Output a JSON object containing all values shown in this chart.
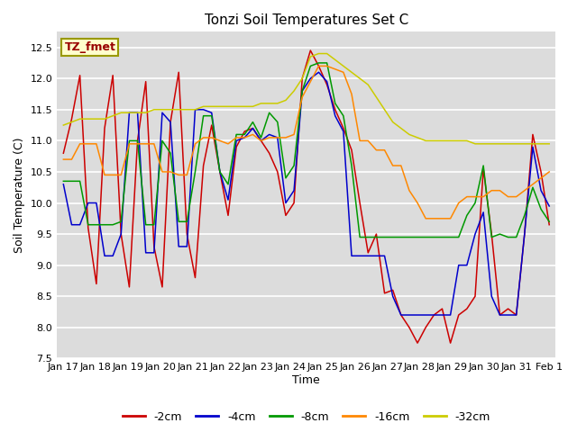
{
  "title": "Tonzi Soil Temperatures Set C",
  "xlabel": "Time",
  "ylabel": "Soil Temperature (C)",
  "ylim": [
    7.5,
    12.75
  ],
  "plot_bg_color": "#dcdcdc",
  "legend_label": "TZ_fmet",
  "series_labels": [
    "-2cm",
    "-4cm",
    "-8cm",
    "-16cm",
    "-32cm"
  ],
  "series_colors": [
    "#cc0000",
    "#0000cc",
    "#009900",
    "#ff8800",
    "#cccc00"
  ],
  "x_tick_labels": [
    "Jan 17",
    "Jan 18",
    "Jan 19",
    "Jan 20",
    "Jan 21",
    "Jan 22",
    "Jan 23",
    "Jan 24",
    "Jan 25",
    "Jan 26",
    "Jan 27",
    "Jan 28",
    "Jan 29",
    "Jan 30",
    "Jan 31",
    "Feb 1"
  ],
  "data_2cm": [
    10.8,
    11.35,
    12.05,
    9.6,
    8.7,
    11.2,
    12.05,
    9.5,
    8.65,
    11.0,
    11.95,
    9.3,
    8.65,
    11.3,
    12.1,
    9.5,
    8.8,
    10.6,
    11.25,
    10.5,
    9.8,
    10.9,
    11.15,
    11.2,
    11.0,
    10.8,
    10.5,
    9.8,
    10.0,
    12.0,
    12.45,
    12.2,
    11.9,
    11.5,
    11.2,
    10.85,
    10.0,
    9.2,
    9.5,
    8.55,
    8.6,
    8.2,
    8.0,
    7.75,
    8.0,
    8.2,
    8.3,
    7.75,
    8.2,
    8.3,
    8.5,
    10.55,
    9.5,
    8.2,
    8.3,
    8.2,
    9.5,
    11.1,
    10.5,
    9.65
  ],
  "data_4cm": [
    10.3,
    9.65,
    9.65,
    10.0,
    10.0,
    9.15,
    9.15,
    9.5,
    11.45,
    11.45,
    9.2,
    9.2,
    11.45,
    11.3,
    9.3,
    9.3,
    11.5,
    11.5,
    11.45,
    10.5,
    10.05,
    11.0,
    11.05,
    11.2,
    11.0,
    11.1,
    11.05,
    10.0,
    10.2,
    11.8,
    12.0,
    12.1,
    11.95,
    11.4,
    11.15,
    9.15,
    9.15,
    9.15,
    9.15,
    9.15,
    8.5,
    8.2,
    8.2,
    8.2,
    8.2,
    8.2,
    8.2,
    8.2,
    9.0,
    9.0,
    9.5,
    9.85,
    8.5,
    8.2,
    8.2,
    8.2,
    9.5,
    10.9,
    10.2,
    9.95
  ],
  "data_8cm": [
    10.35,
    10.35,
    10.35,
    9.65,
    9.65,
    9.65,
    9.65,
    9.7,
    11.0,
    11.0,
    9.65,
    9.65,
    11.0,
    10.8,
    9.7,
    9.7,
    10.5,
    11.4,
    11.4,
    10.5,
    10.3,
    11.1,
    11.1,
    11.3,
    11.05,
    11.45,
    11.3,
    10.4,
    10.6,
    11.8,
    12.2,
    12.25,
    12.25,
    11.6,
    11.4,
    10.6,
    9.45,
    9.45,
    9.45,
    9.45,
    9.45,
    9.45,
    9.45,
    9.45,
    9.45,
    9.45,
    9.45,
    9.45,
    9.45,
    9.8,
    10.0,
    10.6,
    9.45,
    9.5,
    9.45,
    9.45,
    9.8,
    10.25,
    9.9,
    9.7
  ],
  "data_16cm": [
    10.7,
    10.7,
    10.95,
    10.95,
    10.95,
    10.45,
    10.45,
    10.45,
    10.95,
    10.95,
    10.95,
    10.95,
    10.5,
    10.5,
    10.45,
    10.45,
    10.95,
    11.05,
    11.05,
    11.0,
    10.95,
    11.05,
    11.05,
    11.1,
    11.0,
    11.05,
    11.05,
    11.05,
    11.1,
    11.7,
    11.95,
    12.2,
    12.2,
    12.15,
    12.1,
    11.75,
    11.0,
    11.0,
    10.85,
    10.85,
    10.6,
    10.6,
    10.2,
    10.0,
    9.75,
    9.75,
    9.75,
    9.75,
    10.0,
    10.1,
    10.1,
    10.1,
    10.2,
    10.2,
    10.1,
    10.1,
    10.2,
    10.3,
    10.4,
    10.5
  ],
  "data_32cm": [
    11.25,
    11.3,
    11.35,
    11.35,
    11.35,
    11.35,
    11.4,
    11.45,
    11.45,
    11.45,
    11.45,
    11.5,
    11.5,
    11.5,
    11.5,
    11.5,
    11.5,
    11.55,
    11.55,
    11.55,
    11.55,
    11.55,
    11.55,
    11.55,
    11.6,
    11.6,
    11.6,
    11.65,
    11.8,
    12.0,
    12.35,
    12.4,
    12.4,
    12.3,
    12.2,
    12.1,
    12.0,
    11.9,
    11.7,
    11.5,
    11.3,
    11.2,
    11.1,
    11.05,
    11.0,
    11.0,
    11.0,
    11.0,
    11.0,
    11.0,
    10.95,
    10.95,
    10.95,
    10.95,
    10.95,
    10.95,
    10.95,
    10.95,
    10.95,
    10.95
  ]
}
